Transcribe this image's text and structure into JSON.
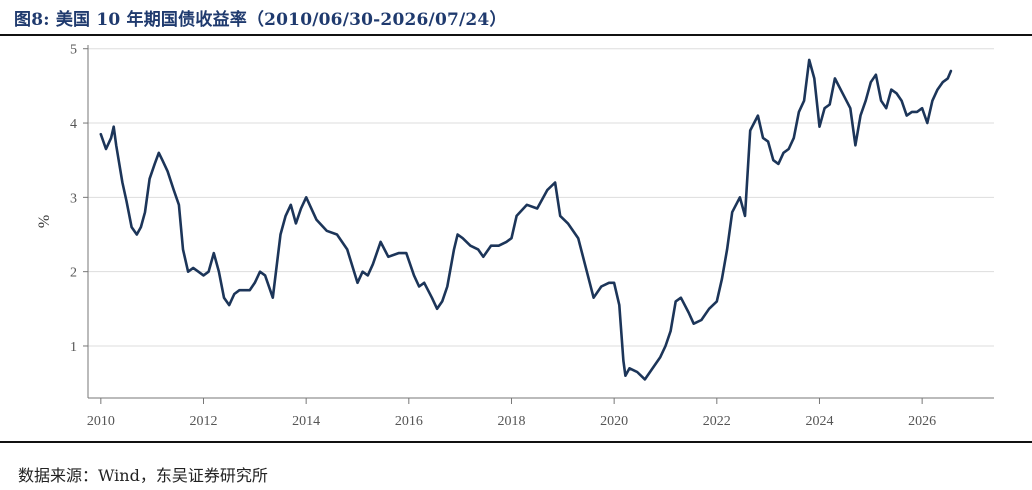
{
  "figure": {
    "title": "图8:  美国 10 年期国债收益率（2010/06/30-2026/07/24）",
    "source": "数据来源：Wind，东吴证券研究所"
  },
  "colors": {
    "line": "#1c3559",
    "grid": "#dddddd",
    "axis": "#777777",
    "title": "#1f3a6e"
  },
  "chart_data": {
    "type": "line",
    "title": "美国 10 年期国债收益率（2010/06/30-2026/07/24）",
    "xlabel": "",
    "ylabel": "%",
    "xlim": [
      2009.75,
      2027.4
    ],
    "ylim": [
      0.3,
      5.05
    ],
    "x_ticks": [
      2010,
      2012,
      2014,
      2016,
      2018,
      2020,
      2022,
      2024,
      2026
    ],
    "x_tick_labels": [
      "2010",
      "2012",
      "2014",
      "2016",
      "2018",
      "2020",
      "2022",
      "2024",
      "2026"
    ],
    "y_ticks": [
      1,
      2,
      3,
      4,
      5
    ],
    "y_tick_labels": [
      "1",
      "2",
      "3",
      "4",
      "5"
    ],
    "grid": "horizontal",
    "legend": "none",
    "series": [
      {
        "x": [
          2010.0,
          2010.1,
          2010.2,
          2010.25,
          2010.3,
          2010.42,
          2010.5,
          2010.6,
          2010.7,
          2010.78,
          2010.86,
          2010.95,
          2011.05,
          2011.13,
          2011.2,
          2011.3,
          2011.42,
          2011.52,
          2011.6,
          2011.7,
          2011.8,
          2011.9,
          2012.0,
          2012.1,
          2012.2,
          2012.3,
          2012.4,
          2012.5,
          2012.6,
          2012.7,
          2012.8,
          2012.9,
          2013.0,
          2013.1,
          2013.2,
          2013.35,
          2013.5,
          2013.6,
          2013.7,
          2013.8,
          2013.9,
          2014.0,
          2014.2,
          2014.4,
          2014.6,
          2014.8,
          2015.0,
          2015.1,
          2015.2,
          2015.3,
          2015.45,
          2015.6,
          2015.8,
          2015.95,
          2016.1,
          2016.2,
          2016.3,
          2016.45,
          2016.55,
          2016.65,
          2016.75,
          2016.88,
          2016.95,
          2017.05,
          2017.2,
          2017.35,
          2017.45,
          2017.6,
          2017.75,
          2017.9,
          2018.0,
          2018.1,
          2018.3,
          2018.5,
          2018.7,
          2018.85,
          2018.95,
          2019.1,
          2019.3,
          2019.45,
          2019.6,
          2019.75,
          2019.9,
          2020.0,
          2020.1,
          2020.18,
          2020.22,
          2020.3,
          2020.45,
          2020.6,
          2020.75,
          2020.9,
          2021.0,
          2021.1,
          2021.2,
          2021.3,
          2021.45,
          2021.55,
          2021.7,
          2021.85,
          2022.0,
          2022.1,
          2022.2,
          2022.3,
          2022.45,
          2022.55,
          2022.65,
          2022.8,
          2022.9,
          2023.0,
          2023.1,
          2023.2,
          2023.3,
          2023.4,
          2023.5,
          2023.6,
          2023.7,
          2023.8,
          2023.9,
          2024.0,
          2024.1,
          2024.2,
          2024.3,
          2024.45,
          2024.6,
          2024.7,
          2024.8,
          2024.9,
          2025.0,
          2025.1,
          2025.2,
          2025.3,
          2025.4,
          2025.5,
          2025.6,
          2025.7,
          2025.8,
          2025.9,
          2026.0,
          2026.1,
          2026.2,
          2026.3,
          2026.4,
          2026.5,
          2026.56
        ],
        "y": [
          3.85,
          3.65,
          3.8,
          3.95,
          3.7,
          3.2,
          2.95,
          2.6,
          2.5,
          2.6,
          2.8,
          3.25,
          3.45,
          3.6,
          3.5,
          3.35,
          3.1,
          2.9,
          2.3,
          2.0,
          2.05,
          2.0,
          1.95,
          2.0,
          2.25,
          2.0,
          1.65,
          1.55,
          1.7,
          1.75,
          1.75,
          1.75,
          1.85,
          2.0,
          1.95,
          1.65,
          2.5,
          2.75,
          2.9,
          2.65,
          2.85,
          3.0,
          2.7,
          2.55,
          2.5,
          2.3,
          1.85,
          2.0,
          1.95,
          2.1,
          2.4,
          2.2,
          2.25,
          2.25,
          1.95,
          1.8,
          1.85,
          1.65,
          1.5,
          1.6,
          1.8,
          2.3,
          2.5,
          2.45,
          2.35,
          2.3,
          2.2,
          2.35,
          2.35,
          2.4,
          2.45,
          2.75,
          2.9,
          2.85,
          3.1,
          3.2,
          2.75,
          2.65,
          2.45,
          2.05,
          1.65,
          1.8,
          1.85,
          1.85,
          1.55,
          0.8,
          0.6,
          0.7,
          0.65,
          0.55,
          0.7,
          0.85,
          1.0,
          1.2,
          1.6,
          1.65,
          1.45,
          1.3,
          1.35,
          1.5,
          1.6,
          1.9,
          2.3,
          2.8,
          3.0,
          2.75,
          3.9,
          4.1,
          3.8,
          3.75,
          3.5,
          3.45,
          3.6,
          3.65,
          3.8,
          4.15,
          4.3,
          4.85,
          4.6,
          3.95,
          4.2,
          4.25,
          4.6,
          4.4,
          4.2,
          3.7,
          4.1,
          4.3,
          4.55,
          4.65,
          4.3,
          4.2,
          4.45,
          4.4,
          4.3,
          4.1,
          4.15,
          4.15,
          4.2,
          4.0,
          4.3,
          4.45,
          4.55,
          4.6,
          4.7
        ]
      }
    ]
  }
}
